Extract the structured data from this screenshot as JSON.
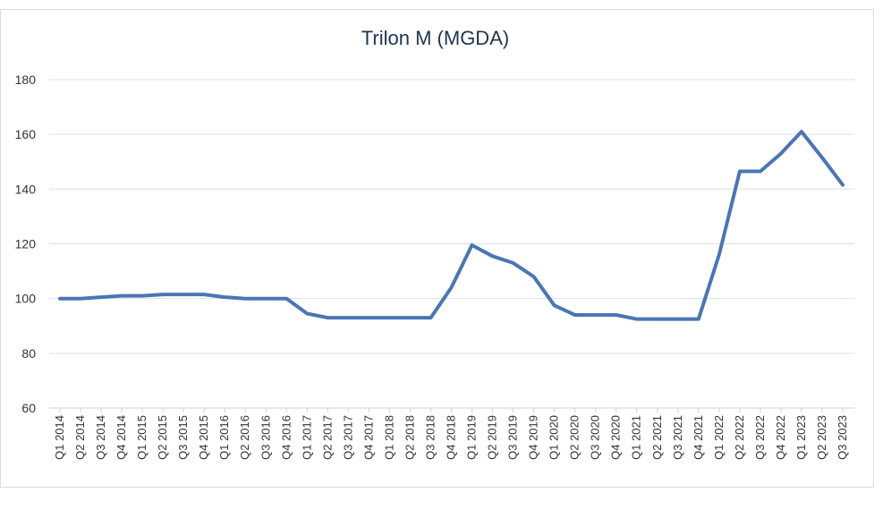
{
  "chart_data": {
    "type": "line",
    "title": "Trilon M (MGDA)",
    "xlabel": "",
    "ylabel": "",
    "ylim": [
      60,
      180
    ],
    "yticks": [
      60,
      80,
      100,
      120,
      140,
      160,
      180
    ],
    "grid": true,
    "categories": [
      "Q1 2014",
      "Q2 2014",
      "Q3 2014",
      "Q4 2014",
      "Q1 2015",
      "Q2 2015",
      "Q3 2015",
      "Q4 2015",
      "Q1 2016",
      "Q2 2016",
      "Q3 2016",
      "Q4 2016",
      "Q1 2017",
      "Q2 2017",
      "Q3 2017",
      "Q4 2017",
      "Q1 2018",
      "Q2 2018",
      "Q3 2018",
      "Q4 2018",
      "Q1 2019",
      "Q2 2019",
      "Q3 2019",
      "Q4 2019",
      "Q1 2020",
      "Q2 2020",
      "Q3 2020",
      "Q4 2020",
      "Q1 2021",
      "Q2 2021",
      "Q3 2021",
      "Q4 2021",
      "Q1 2022",
      "Q2 2022",
      "Q3 2022",
      "Q4 2022",
      "Q1 2023",
      "Q2 2023",
      "Q3 2023"
    ],
    "series": [
      {
        "color": "#4a76b4",
        "values": [
          100,
          100,
          100.5,
          101,
          101,
          101.5,
          101.5,
          101.5,
          100.5,
          100,
          100,
          100,
          94.5,
          93,
          93,
          93,
          93,
          93,
          93,
          104,
          119.5,
          115.5,
          113,
          108,
          97.5,
          94,
          94,
          94,
          92.5,
          92.5,
          92.5,
          92.5,
          116,
          146.5,
          146.5,
          153,
          161,
          151.5,
          141.5
        ]
      }
    ]
  }
}
